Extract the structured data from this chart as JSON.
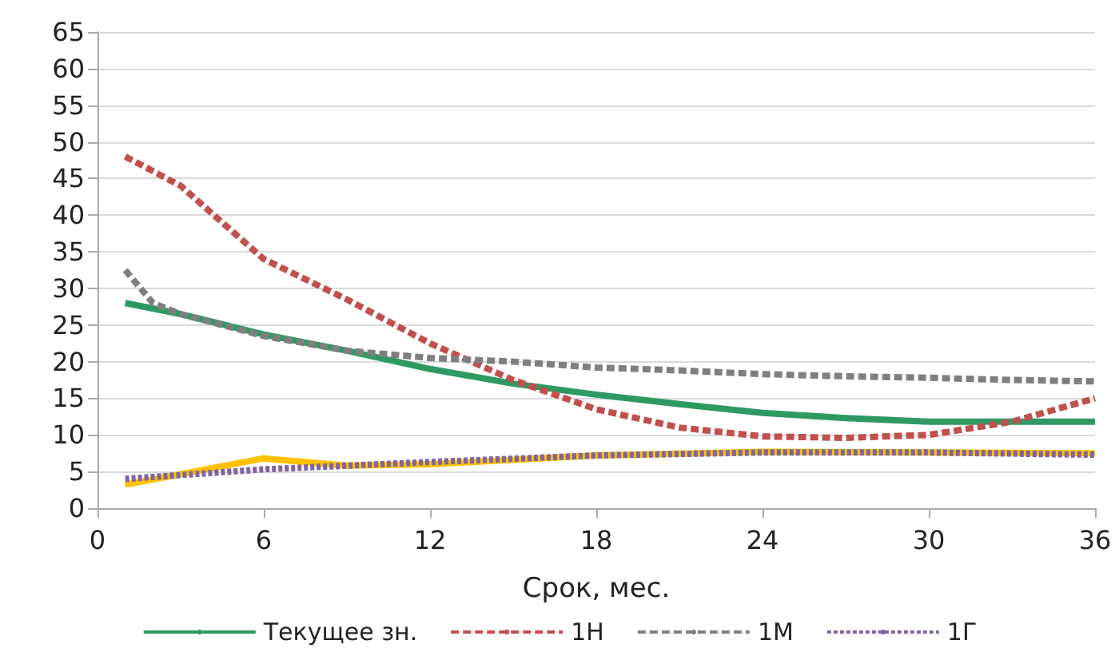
{
  "chart_data": {
    "type": "line",
    "xlabel": "Срок, мес.",
    "xlim": [
      0,
      36
    ],
    "xticks": [
      0,
      6,
      12,
      18,
      24,
      30,
      36
    ],
    "ylim": [
      0,
      65
    ],
    "yticks": [
      0,
      5,
      10,
      15,
      20,
      25,
      30,
      35,
      40,
      45,
      50,
      55,
      60,
      65
    ],
    "grid": "y",
    "legend": "bottom",
    "marker": "none",
    "series": [
      {
        "name": "Текущее зн.",
        "color": "#2e9a62",
        "line_style": "solid",
        "x": [
          1,
          3,
          6,
          9,
          12,
          15,
          18,
          21,
          24,
          27,
          30,
          33,
          36
        ],
        "values": [
          28,
          26.5,
          23.7,
          21.5,
          19,
          17,
          15.5,
          14.2,
          13,
          12.3,
          11.8,
          11.8,
          11.8
        ]
      },
      {
        "name": "1Н",
        "color": "#c0504d",
        "line_style": "dashed",
        "x": [
          1,
          3,
          6,
          9,
          12,
          15,
          18,
          21,
          24,
          27,
          30,
          33,
          36
        ],
        "values": [
          48,
          44,
          34,
          28.5,
          22.5,
          17.5,
          13.5,
          11,
          9.8,
          9.6,
          10,
          11.8,
          15
        ]
      },
      {
        "name": "1М",
        "color": "#7f7f7f",
        "line_style": "dashed",
        "x": [
          1,
          2,
          3,
          6,
          9,
          12,
          15,
          18,
          21,
          24,
          27,
          30,
          33,
          36
        ],
        "values": [
          32.5,
          28,
          26.5,
          23.5,
          21.5,
          20.5,
          20,
          19.2,
          18.8,
          18.3,
          18,
          17.8,
          17.5,
          17.3
        ]
      },
      {
        "color": "#ffc000",
        "line_style": "solid",
        "x": [
          1,
          6,
          9,
          12,
          18,
          24,
          30,
          36
        ],
        "values": [
          3.2,
          6.8,
          5.8,
          6,
          7.2,
          7.7,
          7.6,
          7.5
        ]
      },
      {
        "name": "1Г",
        "color": "#8064a2",
        "line_style": "dotted",
        "x": [
          1,
          6,
          9,
          12,
          18,
          24,
          30,
          36
        ],
        "values": [
          4,
          5.3,
          5.8,
          6.3,
          7.2,
          7.6,
          7.6,
          7.3
        ]
      }
    ]
  }
}
